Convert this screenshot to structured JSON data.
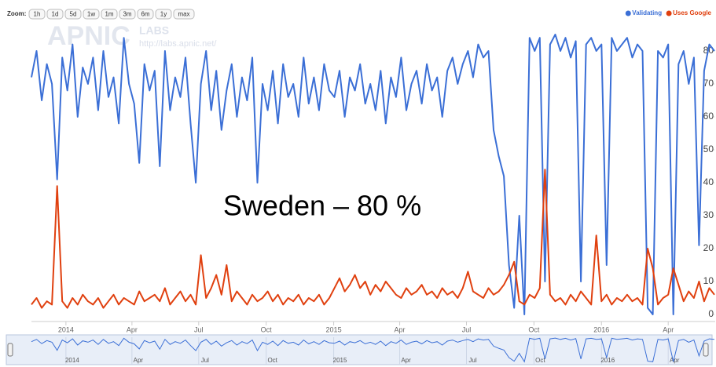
{
  "zoom": {
    "label": "Zoom:",
    "buttons": [
      "1h",
      "1d",
      "5d",
      "1w",
      "1m",
      "3m",
      "6m",
      "1y",
      "max"
    ]
  },
  "watermark": {
    "logo": "APNIC",
    "labs": "LABS",
    "url": "http://labs.apnic.net/"
  },
  "chart_data": {
    "type": "line",
    "annotation": "Sweden – 80 %",
    "x": [
      "2013-11-15",
      "2013-11-22",
      "2013-11-29",
      "2013-12-06",
      "2013-12-13",
      "2013-12-20",
      "2013-12-27",
      "2014-01-03",
      "2014-01-10",
      "2014-01-17",
      "2014-01-24",
      "2014-01-31",
      "2014-02-07",
      "2014-02-14",
      "2014-02-21",
      "2014-02-28",
      "2014-03-07",
      "2014-03-14",
      "2014-03-21",
      "2014-03-28",
      "2014-04-04",
      "2014-04-11",
      "2014-04-18",
      "2014-04-25",
      "2014-05-02",
      "2014-05-09",
      "2014-05-16",
      "2014-05-23",
      "2014-05-30",
      "2014-06-06",
      "2014-06-13",
      "2014-06-20",
      "2014-06-27",
      "2014-07-04",
      "2014-07-11",
      "2014-07-18",
      "2014-07-25",
      "2014-08-01",
      "2014-08-08",
      "2014-08-15",
      "2014-08-22",
      "2014-08-29",
      "2014-09-05",
      "2014-09-12",
      "2014-09-19",
      "2014-09-26",
      "2014-10-03",
      "2014-10-10",
      "2014-10-17",
      "2014-10-24",
      "2014-10-31",
      "2014-11-07",
      "2014-11-14",
      "2014-11-21",
      "2014-11-28",
      "2014-12-05",
      "2014-12-12",
      "2014-12-19",
      "2014-12-26",
      "2015-01-02",
      "2015-01-09",
      "2015-01-16",
      "2015-01-23",
      "2015-01-30",
      "2015-02-06",
      "2015-02-13",
      "2015-02-20",
      "2015-02-27",
      "2015-03-06",
      "2015-03-13",
      "2015-03-20",
      "2015-03-27",
      "2015-04-03",
      "2015-04-10",
      "2015-04-17",
      "2015-04-24",
      "2015-05-01",
      "2015-05-08",
      "2015-05-15",
      "2015-05-22",
      "2015-05-29",
      "2015-06-05",
      "2015-06-12",
      "2015-06-19",
      "2015-06-26",
      "2015-07-03",
      "2015-07-10",
      "2015-07-17",
      "2015-07-24",
      "2015-07-31",
      "2015-08-07",
      "2015-08-14",
      "2015-08-21",
      "2015-08-28",
      "2015-09-04",
      "2015-09-11",
      "2015-09-18",
      "2015-09-25",
      "2015-10-02",
      "2015-10-09",
      "2015-10-16",
      "2015-10-23",
      "2015-10-30",
      "2015-11-06",
      "2015-11-13",
      "2015-11-20",
      "2015-11-27",
      "2015-12-04",
      "2015-12-11",
      "2015-12-18",
      "2015-12-25",
      "2016-01-01",
      "2016-01-08",
      "2016-01-15",
      "2016-01-22",
      "2016-01-29",
      "2016-02-05",
      "2016-02-12",
      "2016-02-19",
      "2016-02-26",
      "2016-03-04",
      "2016-03-11",
      "2016-03-18",
      "2016-03-25",
      "2016-04-01",
      "2016-04-08",
      "2016-04-15",
      "2016-04-22",
      "2016-04-29",
      "2016-05-06",
      "2016-05-13",
      "2016-05-20",
      "2016-05-27",
      "2016-06-03"
    ],
    "series": [
      {
        "name": "Validating",
        "color": "#3b6fd6",
        "values": [
          72,
          80,
          65,
          76,
          70,
          41,
          78,
          68,
          82,
          60,
          75,
          70,
          78,
          62,
          80,
          66,
          72,
          58,
          84,
          70,
          64,
          46,
          76,
          68,
          74,
          45,
          80,
          62,
          72,
          66,
          78,
          58,
          40,
          70,
          80,
          62,
          74,
          56,
          68,
          76,
          60,
          72,
          65,
          78,
          40,
          70,
          62,
          74,
          58,
          76,
          66,
          70,
          60,
          78,
          64,
          72,
          62,
          76,
          68,
          66,
          74,
          60,
          72,
          68,
          76,
          64,
          70,
          62,
          74,
          58,
          72,
          66,
          78,
          62,
          70,
          74,
          64,
          76,
          68,
          72,
          60,
          74,
          78,
          70,
          76,
          80,
          72,
          82,
          78,
          80,
          56,
          48,
          42,
          15,
          2,
          30,
          0,
          84,
          80,
          84,
          10,
          82,
          85,
          80,
          84,
          78,
          83,
          10,
          82,
          84,
          80,
          82,
          15,
          84,
          80,
          82,
          84,
          78,
          82,
          80,
          2,
          0,
          80,
          78,
          82,
          0,
          76,
          80,
          70,
          78,
          21,
          74,
          82,
          80
        ]
      },
      {
        "name": "Uses Google",
        "color": "#e0400f",
        "values": [
          3,
          5,
          2,
          4,
          3,
          39,
          4,
          2,
          5,
          3,
          6,
          4,
          3,
          5,
          2,
          4,
          6,
          3,
          5,
          4,
          3,
          7,
          4,
          5,
          6,
          4,
          8,
          3,
          5,
          7,
          4,
          6,
          3,
          18,
          5,
          8,
          12,
          6,
          15,
          4,
          7,
          5,
          3,
          6,
          4,
          5,
          7,
          4,
          6,
          3,
          5,
          4,
          6,
          3,
          5,
          4,
          6,
          3,
          5,
          8,
          11,
          7,
          9,
          12,
          8,
          10,
          6,
          9,
          7,
          10,
          8,
          6,
          5,
          8,
          6,
          7,
          9,
          6,
          7,
          5,
          8,
          6,
          7,
          5,
          8,
          13,
          7,
          6,
          5,
          8,
          6,
          7,
          9,
          12,
          16,
          4,
          3,
          6,
          5,
          8,
          44,
          6,
          4,
          5,
          3,
          6,
          4,
          7,
          5,
          3,
          24,
          4,
          6,
          3,
          5,
          4,
          6,
          4,
          5,
          3,
          20,
          14,
          3,
          5,
          6,
          14,
          9,
          4,
          7,
          5,
          10,
          4,
          8,
          6
        ]
      }
    ],
    "xlim": [
      "2013-11-15",
      "2016-06-03"
    ],
    "xticks": [
      {
        "value": "2014-01-01",
        "label": "2014"
      },
      {
        "value": "2014-04-01",
        "label": "Apr"
      },
      {
        "value": "2014-07-01",
        "label": "Jul"
      },
      {
        "value": "2014-10-01",
        "label": "Oct"
      },
      {
        "value": "2015-01-01",
        "label": "2015"
      },
      {
        "value": "2015-04-01",
        "label": "Apr"
      },
      {
        "value": "2015-07-01",
        "label": "Jul"
      },
      {
        "value": "2015-10-01",
        "label": "Oct"
      },
      {
        "value": "2016-01-01",
        "label": "2016"
      },
      {
        "value": "2016-04-01",
        "label": "Apr"
      }
    ],
    "ylim": [
      -2,
      88
    ],
    "yticks": [
      0,
      10,
      20,
      30,
      40,
      50,
      60,
      70,
      80
    ],
    "legend": "top-right"
  }
}
